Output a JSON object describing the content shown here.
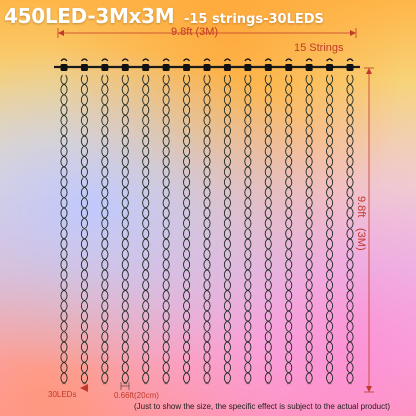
{
  "title": {
    "main": "450LED-3Mx3M",
    "sub": "-15 strings-30LEDS"
  },
  "width_label": "9.8ft  (3M)",
  "strings_label": "15 Strings",
  "height_label": {
    "feet": "9.8ft",
    "meters": "(3M)"
  },
  "leds_label": "30LEDs",
  "spacing_label": "0.66ft(20cm)",
  "footnote": "(Just to show the size, the specific effect is subject to the actual product)",
  "diagram": {
    "strings": 15,
    "leds_per_string": 30
  },
  "colors": {
    "title": "#ffffff",
    "dimension": "#c0392b",
    "wire": "#1f2a24",
    "clip": "#111111"
  }
}
